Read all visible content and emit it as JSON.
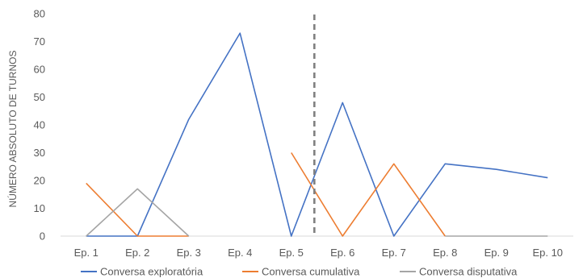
{
  "chart_data": {
    "type": "line",
    "ylabel": "NÚMERO ABSOLUTO DE TURNOS",
    "xlabel": "",
    "ylim": [
      0,
      80
    ],
    "yticks": [
      0,
      10,
      20,
      30,
      40,
      50,
      60,
      70,
      80
    ],
    "grid": false,
    "legend_position": "bottom",
    "categories": [
      "Ep. 1",
      "Ep. 2",
      "Ep. 3",
      "Ep. 4",
      "Ep. 5",
      "Ep. 6",
      "Ep. 7",
      "Ep. 8",
      "Ep. 9",
      "Ep. 10"
    ],
    "series": [
      {
        "name": "Conversa exploratória",
        "color": "#4472C4",
        "values": [
          0,
          0,
          42,
          73,
          0,
          48,
          0,
          26,
          24,
          21
        ]
      },
      {
        "name": "Conversa cumulativa",
        "color": "#ED7D31",
        "values": [
          19,
          0,
          0,
          null,
          30,
          0,
          26,
          0,
          null,
          null
        ]
      },
      {
        "name": "Conversa disputativa",
        "color": "#A5A5A5",
        "values": [
          0,
          17,
          0,
          null,
          null,
          null,
          null,
          0,
          0,
          0
        ]
      }
    ],
    "annotations": [
      {
        "type": "vertical-dashed-line",
        "between": [
          "Ep. 5",
          "Ep. 6"
        ],
        "color": "#808080"
      }
    ]
  }
}
